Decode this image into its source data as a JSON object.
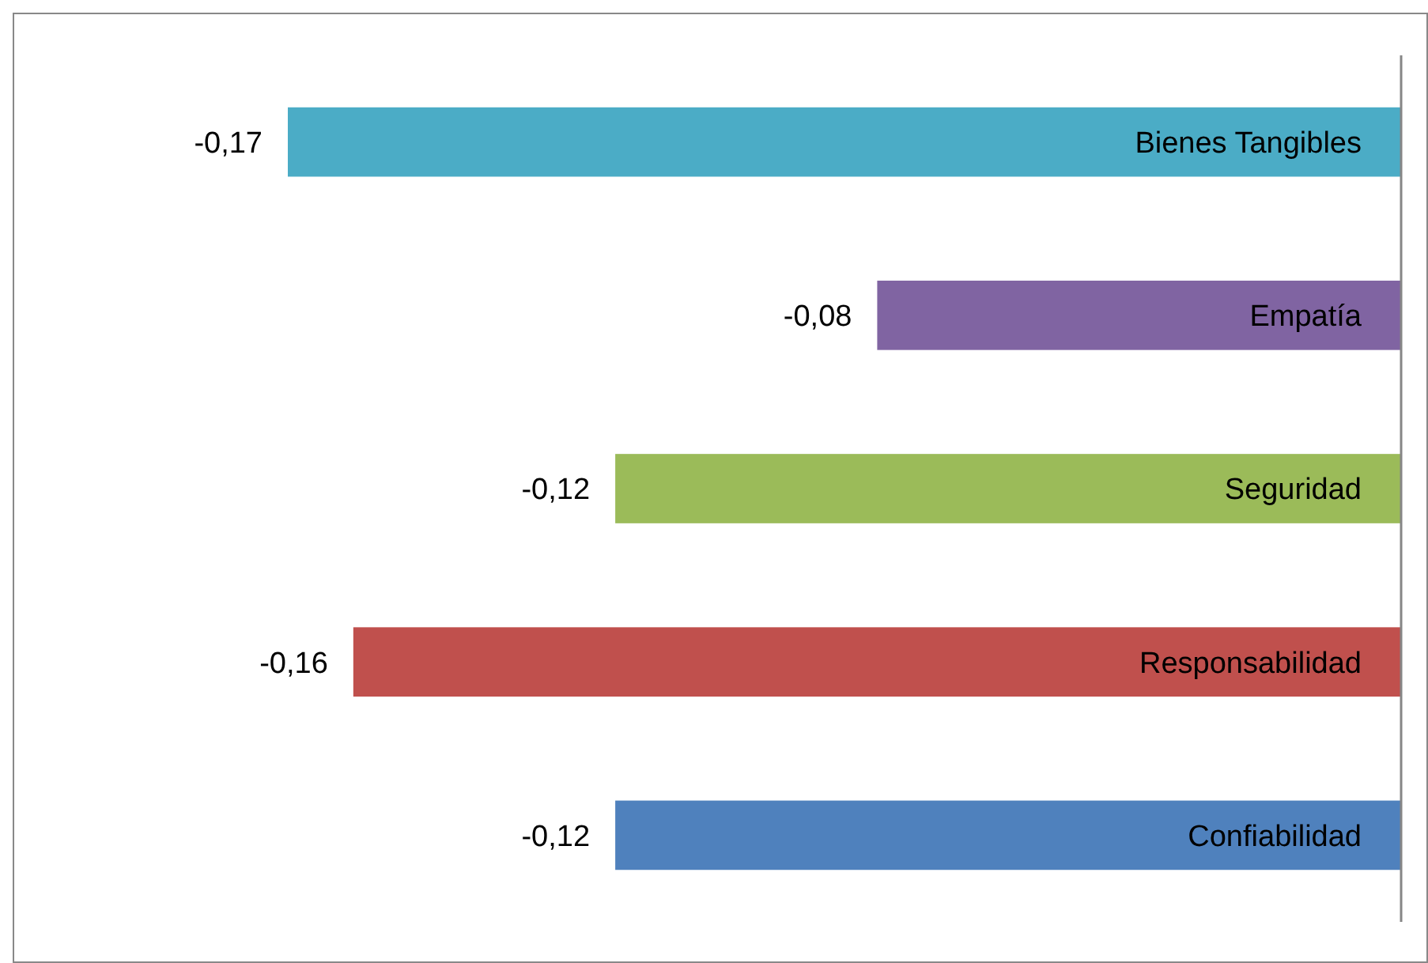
{
  "chart_data": {
    "type": "bar",
    "orientation": "horizontal",
    "categories": [
      "Bienes Tangibles",
      "Empatía",
      "Seguridad",
      "Responsabilidad",
      "Confiabilidad"
    ],
    "values": [
      -0.17,
      -0.08,
      -0.12,
      -0.16,
      -0.12
    ],
    "colors": [
      "#4bacc6",
      "#8064a2",
      "#9bbb59",
      "#c0504d",
      "#4f81bd"
    ],
    "value_labels": [
      "-0,17",
      "-0,08",
      "-0,12",
      "-0,16",
      "-0,12"
    ]
  }
}
